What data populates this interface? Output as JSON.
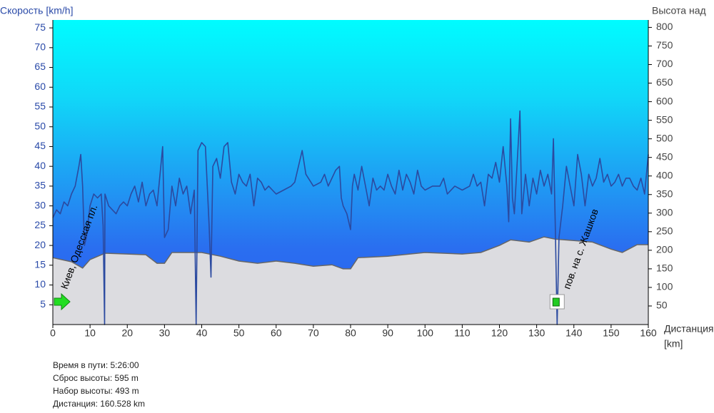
{
  "chart_data": {
    "type": "line",
    "y_title": "Скорость [km/h]",
    "y2_title": "Высота над",
    "x_title": "Дистанция",
    "x_unit": "[km]",
    "xlim": [
      0,
      160
    ],
    "xticks": [
      0,
      10,
      20,
      30,
      40,
      50,
      60,
      70,
      80,
      90,
      100,
      110,
      120,
      130,
      140,
      150,
      160
    ],
    "ylim": [
      0,
      77
    ],
    "yticks": [
      5,
      10,
      15,
      20,
      25,
      30,
      35,
      40,
      45,
      50,
      55,
      60,
      65,
      70,
      75
    ],
    "y2lim": [
      0,
      820
    ],
    "y2ticks": [
      50,
      100,
      150,
      200,
      250,
      300,
      350,
      400,
      450,
      500,
      550,
      600,
      650,
      700,
      750,
      800
    ],
    "series": [
      {
        "name": "Высота",
        "type": "area",
        "axis": "y2",
        "color": "#dcdce0",
        "x": [
          0,
          5,
          8,
          10,
          14,
          20,
          25,
          28,
          30,
          32,
          40,
          45,
          50,
          55,
          60,
          65,
          70,
          75,
          78,
          80,
          82,
          90,
          100,
          110,
          115,
          120,
          123,
          128,
          132,
          135,
          140,
          145,
          150,
          153,
          157,
          160
        ],
        "values": [
          180,
          169,
          152,
          175,
          192,
          190,
          188,
          165,
          165,
          194,
          194,
          184,
          171,
          165,
          171,
          165,
          157,
          161,
          150,
          150,
          180,
          184,
          194,
          190,
          194,
          213,
          228,
          222,
          236,
          230,
          226,
          222,
          203,
          194,
          215,
          215
        ]
      },
      {
        "name": "Скорость",
        "type": "line",
        "axis": "y",
        "color": "#2b4aa0",
        "x": [
          0,
          1,
          2,
          3,
          4,
          5,
          6,
          7,
          7.5,
          8,
          8.5,
          9,
          10,
          11,
          12,
          13,
          13.5,
          13.9,
          14,
          15,
          16,
          17,
          18,
          19,
          20,
          21,
          22,
          23,
          24,
          25,
          26,
          27,
          28,
          29,
          29.5,
          30,
          31,
          32,
          33,
          34,
          35,
          36,
          37,
          38,
          38.5,
          39,
          40,
          41,
          42,
          42.5,
          43,
          44,
          45,
          46,
          47,
          48,
          49,
          50,
          51,
          52,
          53,
          54,
          55,
          56,
          57,
          58,
          59,
          60,
          62,
          64,
          65,
          67,
          68,
          70,
          72,
          73,
          74,
          75,
          76,
          77,
          77.5,
          78,
          79,
          80,
          80.5,
          81,
          82,
          83,
          84,
          85,
          86,
          87,
          88,
          89,
          90,
          91,
          92,
          93,
          94,
          95,
          96,
          97,
          98,
          99,
          100,
          102,
          104,
          105,
          106,
          108,
          110,
          112,
          113,
          114,
          115,
          116,
          117,
          118,
          119,
          120,
          121,
          122,
          122.5,
          123,
          123.5,
          124,
          125,
          125.5,
          126,
          127,
          128,
          129,
          130,
          131,
          132,
          133,
          134,
          134.5,
          135,
          135.5,
          136,
          137,
          138,
          139,
          140,
          141,
          142,
          143,
          144,
          145,
          146,
          147,
          148,
          149,
          150,
          151,
          152,
          153,
          154,
          155,
          156,
          157,
          158,
          159,
          160
        ],
        "values": [
          27,
          29,
          28,
          31,
          30,
          33,
          35,
          40,
          43,
          35,
          20,
          22,
          30,
          33,
          32,
          33,
          25,
          0,
          33,
          30,
          29,
          28,
          30,
          31,
          30,
          33,
          35,
          31,
          36,
          30,
          33,
          34,
          30,
          40,
          45,
          22,
          24,
          35,
          30,
          37,
          33,
          35,
          28,
          34,
          0,
          44,
          46,
          45,
          25,
          12,
          40,
          42,
          37,
          45,
          46,
          36,
          33,
          38,
          36,
          35,
          38,
          30,
          37,
          36,
          34,
          35,
          34,
          33,
          34,
          35,
          36,
          44,
          38,
          35,
          36,
          38,
          35,
          37,
          39,
          40,
          32,
          30,
          28,
          24,
          35,
          38,
          34,
          40,
          35,
          30,
          37,
          34,
          35,
          34,
          38,
          35,
          33,
          39,
          34,
          38,
          36,
          33,
          39,
          35,
          34,
          35,
          35,
          37,
          33,
          35,
          34,
          35,
          38,
          35,
          36,
          30,
          38,
          37,
          41,
          36,
          45,
          35,
          26,
          52,
          32,
          28,
          45,
          54,
          28,
          38,
          30,
          37,
          33,
          39,
          35,
          38,
          33,
          47,
          25,
          0,
          22,
          30,
          40,
          35,
          30,
          43,
          38,
          30,
          38,
          35,
          37,
          42,
          36,
          38,
          35,
          36,
          38,
          35,
          37,
          37,
          35,
          34,
          37,
          33,
          43
        ]
      }
    ],
    "annotations": [
      {
        "text": "Киев, Одесская пл.",
        "x": 2
      },
      {
        "text": "пов. на с. Жашков",
        "x": 137
      }
    ],
    "stats": [
      "Время в пути: 5:26:00",
      "Сброс высоты: 595 m",
      "Набор высоты: 493 m",
      "Дистанция: 160.528 km"
    ]
  }
}
